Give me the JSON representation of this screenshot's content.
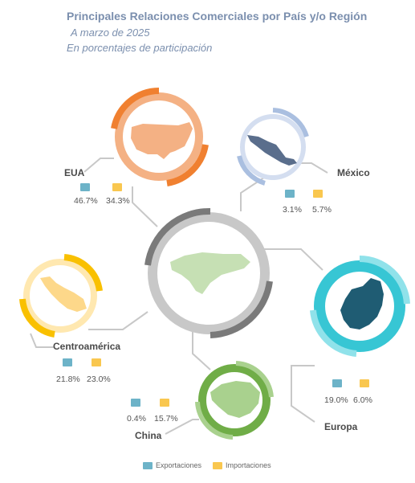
{
  "header": {
    "title": "Principales Relaciones Comerciales por País y/o Región",
    "subtitle": "A marzo de 2025",
    "subtitle2": "En porcentajes de participación"
  },
  "colors": {
    "exports": "#6db3c8",
    "imports": "#f9c74f",
    "connector": "#c8c8c8"
  },
  "regions": {
    "eua": {
      "name": "EUA",
      "exports": "46.7%",
      "imports": "34.3%",
      "icon": "usa-map-icon"
    },
    "mexico": {
      "name": "México",
      "exports": "3.1%",
      "imports": "5.7%",
      "icon": "mexico-map-icon"
    },
    "centroamerica": {
      "name": "Centroamérica",
      "exports": "21.8%",
      "imports": "23.0%",
      "icon": "central-america-map-icon"
    },
    "europa": {
      "name": "Europa",
      "exports": "19.0%",
      "imports": "6.0%",
      "icon": "europe-map-icon"
    },
    "china": {
      "name": "China",
      "exports": "0.4%",
      "imports": "15.7%",
      "icon": "china-map-icon"
    }
  },
  "center": {
    "icon": "honduras-map-icon"
  },
  "legend": {
    "exports_label": "Exportaciones",
    "imports_label": "Importaciones"
  }
}
